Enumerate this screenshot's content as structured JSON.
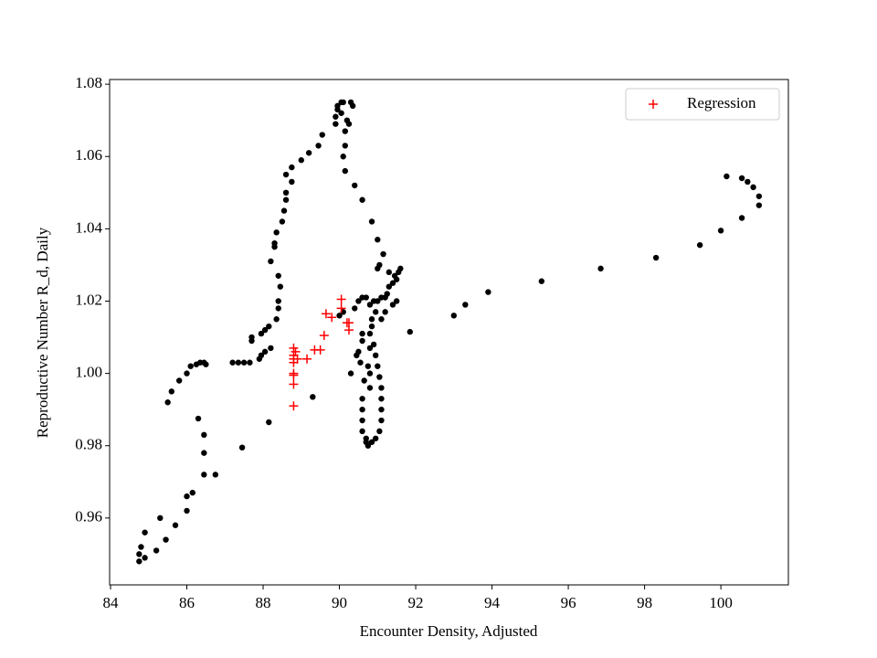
{
  "chart_data": {
    "type": "scatter",
    "x_label": "Encounter Density, Adjusted",
    "y_label": "Reproductive Number R_d, Daily",
    "xlim": [
      83.976,
      101.77
    ],
    "ylim": [
      0.9415,
      1.0813
    ],
    "xticks": [
      84,
      86,
      88,
      90,
      92,
      94,
      96,
      98,
      100
    ],
    "yticks": [
      0.96,
      0.98,
      {
        "value": 1,
        "label": "1.00"
      },
      1.02,
      1.04,
      1.06,
      1.08
    ],
    "legend": "upper right",
    "series": [
      {
        "color": "#000000",
        "marker": "circle",
        "x": [
          84.75,
          84.75,
          84.8,
          84.9,
          84.9,
          85.2,
          85.3,
          85.45,
          85.7,
          86.0,
          86.0,
          86.15,
          86.45,
          86.75,
          86.45,
          86.45,
          86.3,
          85.5,
          85.6,
          85.8,
          86.0,
          86.1,
          86.25,
          86.35,
          86.45,
          86.5,
          87.2,
          87.35,
          87.5,
          87.65,
          87.9,
          87.95,
          88.05,
          88.2,
          87.7,
          87.7,
          87.95,
          88.05,
          88.15,
          88.35,
          88.4,
          88.4,
          88.45,
          88.4,
          88.2,
          88.3,
          88.3,
          88.35,
          88.5,
          88.55,
          88.6,
          88.6,
          88.75,
          88.6,
          88.75,
          89.0,
          89.2,
          89.45,
          89.55,
          89.9,
          89.9,
          89.95,
          90.05,
          90.1,
          89.95,
          90.05,
          90.2,
          90.25,
          90.3,
          90.35,
          90.15,
          90.15,
          90.1,
          90.15,
          90.4,
          90.6,
          90.85,
          91.0,
          91.15,
          91.05,
          91.0,
          91.3,
          91.45,
          91.55,
          91.6,
          91.5,
          91.4,
          91.3,
          91.25,
          91.2,
          91.1,
          91.0,
          90.9,
          90.8,
          90.6,
          90.7,
          90.5,
          90.4,
          90.1,
          90.0,
          90.85,
          90.95,
          90.85,
          90.6,
          90.6,
          90.8,
          90.5,
          90.45,
          90.55,
          90.75,
          90.8,
          90.65,
          90.8,
          90.6,
          90.6,
          90.6,
          90.6,
          90.7,
          90.7,
          90.75,
          90.85,
          90.95,
          91.05,
          91.1,
          91.1,
          91.1,
          91.1,
          91.05,
          91.0,
          90.95,
          90.9,
          90.8,
          91.1,
          91.2,
          91.4,
          91.5,
          90.3,
          89.3,
          88.15,
          87.45,
          91.85,
          93.0,
          93.3,
          93.9,
          95.3,
          96.85,
          98.3,
          99.45,
          100.0,
          100.55,
          101.0,
          101.0,
          100.85,
          100.7,
          100.55,
          100.15
        ],
        "values": [
          0.948,
          0.95,
          0.952,
          0.949,
          0.956,
          0.951,
          0.96,
          0.954,
          0.958,
          0.962,
          0.966,
          0.967,
          0.972,
          0.972,
          0.978,
          0.983,
          0.9875,
          0.992,
          0.995,
          0.998,
          1.0,
          1.002,
          1.0025,
          1.003,
          1.003,
          1.0025,
          1.003,
          1.003,
          1.003,
          1.003,
          1.004,
          1.005,
          1.006,
          1.007,
          1.009,
          1.01,
          1.011,
          1.012,
          1.013,
          1.015,
          1.018,
          1.02,
          1.024,
          1.027,
          1.031,
          1.035,
          1.036,
          1.039,
          1.042,
          1.045,
          1.048,
          1.05,
          1.053,
          1.055,
          1.057,
          1.059,
          1.061,
          1.063,
          1.066,
          1.069,
          1.071,
          1.074,
          1.075,
          1.075,
          1.073,
          1.072,
          1.07,
          1.069,
          1.075,
          1.074,
          1.067,
          1.063,
          1.06,
          1.056,
          1.052,
          1.048,
          1.042,
          1.037,
          1.033,
          1.03,
          1.029,
          1.028,
          1.027,
          1.028,
          1.029,
          1.026,
          1.025,
          1.024,
          1.022,
          1.021,
          1.021,
          1.02,
          1.02,
          1.019,
          1.021,
          1.021,
          1.02,
          1.018,
          1.017,
          1.016,
          1.015,
          1.017,
          1.013,
          1.011,
          1.009,
          1.007,
          1.006,
          1.005,
          1.003,
          1.002,
          1.0,
          0.998,
          0.996,
          0.993,
          0.99,
          0.987,
          0.984,
          0.982,
          0.981,
          0.98,
          0.981,
          0.982,
          0.984,
          0.987,
          0.99,
          0.993,
          0.996,
          0.999,
          1.002,
          1.005,
          1.008,
          1.011,
          1.015,
          1.017,
          1.019,
          1.02,
          1.0,
          0.9935,
          0.9865,
          0.9795,
          1.0115,
          1.016,
          1.019,
          1.0225,
          1.0255,
          1.029,
          1.032,
          1.0355,
          1.0395,
          1.043,
          1.0465,
          1.049,
          1.0515,
          1.053,
          1.054,
          1.0545
        ]
      },
      {
        "name": "Regression",
        "color": "#ff0000",
        "marker": "plus",
        "x": [
          88.8,
          88.8,
          88.8,
          88.8,
          88.85,
          88.9,
          88.8,
          88.8,
          88.8,
          88.8,
          89.15,
          89.35,
          89.5,
          89.6,
          89.65,
          89.8,
          90.05,
          90.05,
          90.2,
          90.25,
          90.25
        ],
        "values": [
          1.007,
          1.005,
          1.004,
          1.003,
          1.006,
          1.004,
          1.0,
          0.9995,
          0.997,
          0.991,
          1.004,
          1.0065,
          1.0065,
          1.0105,
          1.0165,
          1.0155,
          1.0205,
          1.018,
          1.014,
          1.012,
          1.014
        ]
      }
    ]
  }
}
